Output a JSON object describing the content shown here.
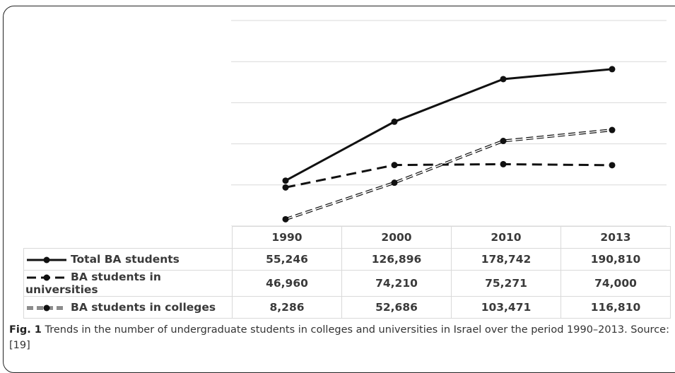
{
  "chart_data": {
    "type": "line",
    "categories": [
      "1990",
      "2000",
      "2010",
      "2013"
    ],
    "series": [
      {
        "name": "Total BA students",
        "values": [
          55246,
          126896,
          178742,
          190810
        ],
        "labels": [
          "55,246",
          "126,896",
          "178,742",
          "190,810"
        ],
        "style": "solid",
        "color": "#111111"
      },
      {
        "name": "BA students in universities",
        "values": [
          46960,
          74210,
          75271,
          74000
        ],
        "labels": [
          "46,960",
          "74,210",
          "75,271",
          "74,000"
        ],
        "style": "dashed",
        "color": "#111111"
      },
      {
        "name": "BA students in colleges",
        "values": [
          8286,
          52686,
          103471,
          116810
        ],
        "labels": [
          "8,286",
          "52,686",
          "103,471",
          "116,810"
        ],
        "style": "double-dashed",
        "color": "#111111"
      }
    ],
    "ylim": [
      0,
      250000
    ],
    "grid": true,
    "legend": "data-table"
  },
  "caption": {
    "label": "Fig. 1",
    "text": " Trends in the number of undergraduate students in colleges and universities in Israel over the period 1990–2013. Source: [19]"
  }
}
